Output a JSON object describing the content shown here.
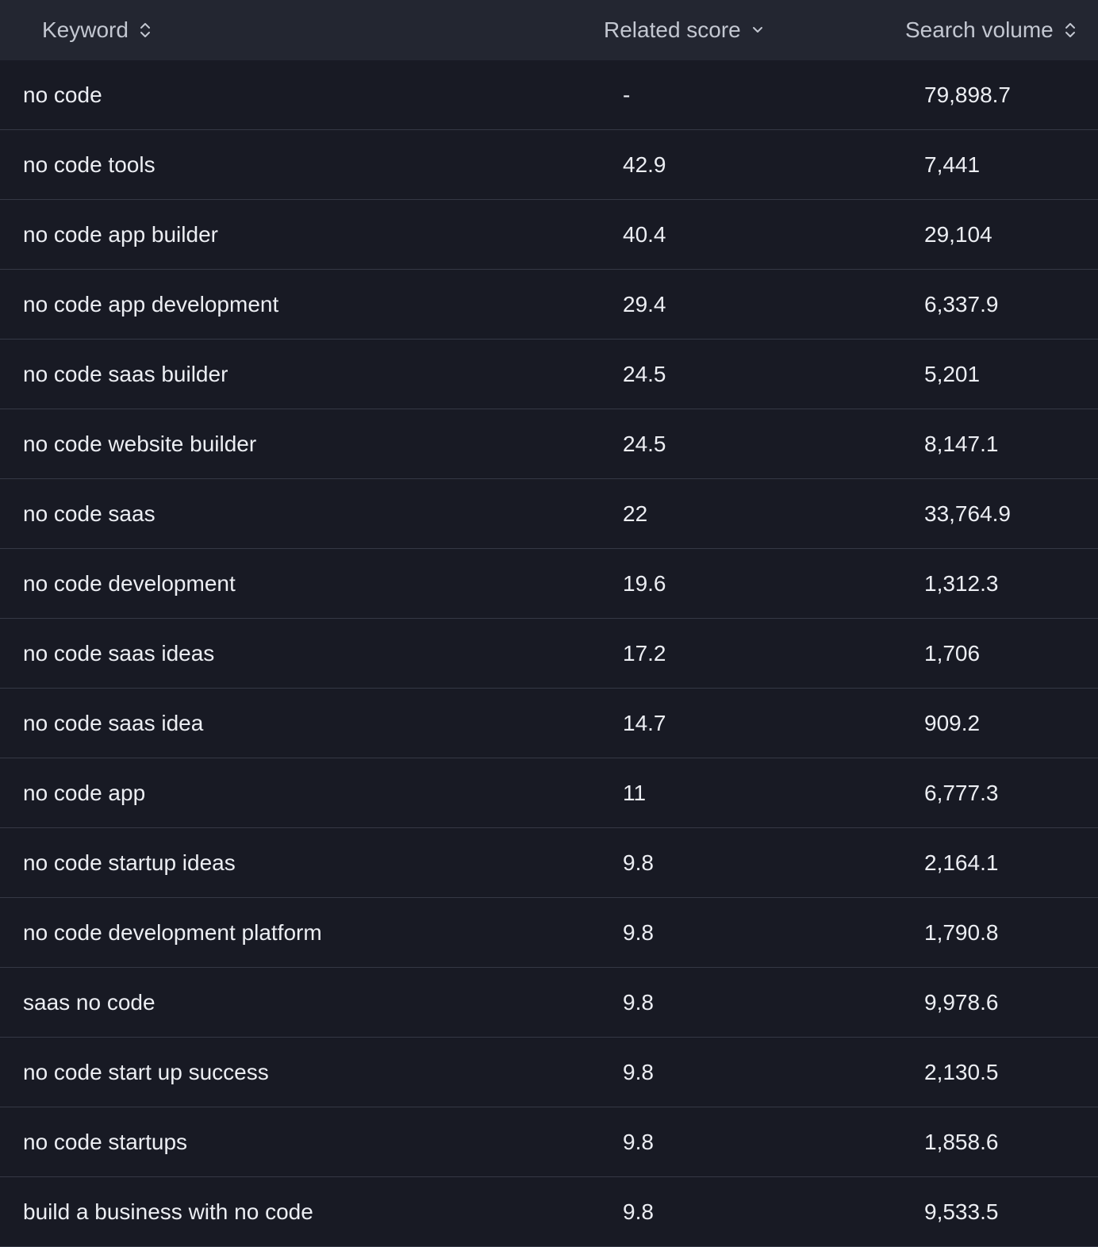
{
  "table": {
    "columns": [
      {
        "label": "Keyword",
        "sort_icon": "sort-updown-icon"
      },
      {
        "label": "Related score",
        "sort_icon": "chevron-down-icon"
      },
      {
        "label": "Search volume",
        "sort_icon": "sort-updown-icon"
      }
    ],
    "rows": [
      {
        "keyword": "no code",
        "related_score": "-",
        "search_volume": "79,898.7"
      },
      {
        "keyword": "no code tools",
        "related_score": "42.9",
        "search_volume": "7,441"
      },
      {
        "keyword": "no code app builder",
        "related_score": "40.4",
        "search_volume": "29,104"
      },
      {
        "keyword": "no code app development",
        "related_score": "29.4",
        "search_volume": "6,337.9"
      },
      {
        "keyword": "no code saas builder",
        "related_score": "24.5",
        "search_volume": "5,201"
      },
      {
        "keyword": "no code website builder",
        "related_score": "24.5",
        "search_volume": "8,147.1"
      },
      {
        "keyword": "no code saas",
        "related_score": "22",
        "search_volume": "33,764.9"
      },
      {
        "keyword": "no code development",
        "related_score": "19.6",
        "search_volume": "1,312.3"
      },
      {
        "keyword": "no code saas ideas",
        "related_score": "17.2",
        "search_volume": "1,706"
      },
      {
        "keyword": "no code saas idea",
        "related_score": "14.7",
        "search_volume": "909.2"
      },
      {
        "keyword": "no code app",
        "related_score": "11",
        "search_volume": "6,777.3"
      },
      {
        "keyword": "no code startup ideas",
        "related_score": "9.8",
        "search_volume": "2,164.1"
      },
      {
        "keyword": "no code development platform",
        "related_score": "9.8",
        "search_volume": "1,790.8"
      },
      {
        "keyword": "saas no code",
        "related_score": "9.8",
        "search_volume": "9,978.6"
      },
      {
        "keyword": "no code start up success",
        "related_score": "9.8",
        "search_volume": "2,130.5"
      },
      {
        "keyword": "no code startups",
        "related_score": "9.8",
        "search_volume": "1,858.6"
      },
      {
        "keyword": "build a business with no code",
        "related_score": "9.8",
        "search_volume": "9,533.5"
      }
    ]
  }
}
